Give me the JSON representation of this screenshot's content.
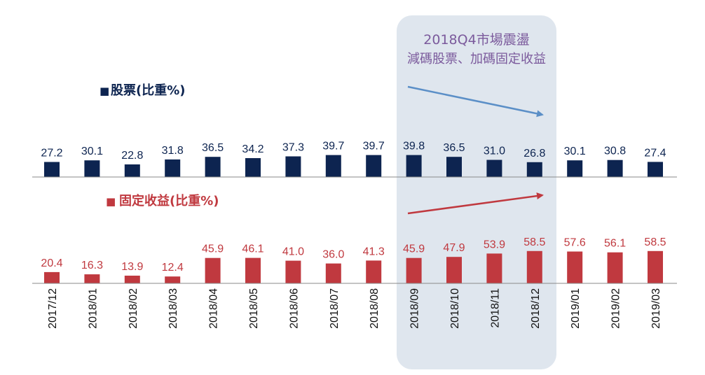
{
  "chart_data": {
    "type": "bar",
    "categories": [
      "2017/12",
      "2018/01",
      "2018/02",
      "2018/03",
      "2018/04",
      "2018/05",
      "2018/06",
      "2018/07",
      "2018/08",
      "2018/09",
      "2018/10",
      "2018/11",
      "2018/12",
      "2019/01",
      "2019/02",
      "2019/03"
    ],
    "series": [
      {
        "name": "股票(比重%)",
        "values": [
          27.2,
          30.1,
          22.8,
          31.8,
          36.5,
          34.2,
          37.3,
          39.7,
          39.7,
          39.8,
          36.5,
          31.0,
          26.8,
          30.1,
          30.8,
          27.4
        ],
        "labels": [
          "27.2",
          "30.1",
          "22.8",
          "31.8",
          "36.5",
          "34.2",
          "37.3",
          "39.7",
          "39.7",
          "39.8",
          "36.5",
          "31.0",
          "26.8",
          "30.1",
          "30.8",
          "27.4"
        ],
        "color": "#0d2450",
        "legend_marker": "■"
      },
      {
        "name": "固定收益(比重%)",
        "values": [
          20.4,
          16.3,
          13.9,
          12.4,
          45.9,
          46.1,
          41.0,
          36.0,
          41.3,
          45.9,
          47.9,
          53.9,
          58.5,
          57.6,
          56.1,
          58.5
        ],
        "labels": [
          "20.4",
          "16.3",
          "13.9",
          "12.4",
          "45.9",
          "46.1",
          "41.0",
          "36.0",
          "41.3",
          "45.9",
          "47.9",
          "53.9",
          "58.5",
          "57.6",
          "56.1",
          "58.5"
        ],
        "color": "#c0393f",
        "legend_marker": "■"
      }
    ],
    "annotation": {
      "line1": "2018Q4市場震盪",
      "line2": "減碼股票、加碼固定收益",
      "color": "#7b5a9c",
      "highlight_color": "#dfe6ee",
      "equity_arrow_color": "#5b8fc7",
      "fixed_arrow_color": "#c0393f"
    }
  }
}
